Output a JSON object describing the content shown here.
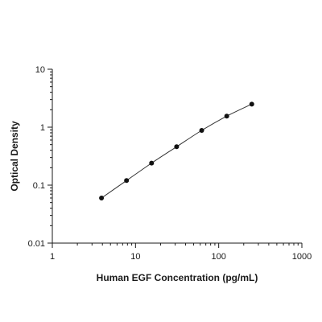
{
  "chart_data": {
    "type": "scatter",
    "title": "",
    "xlabel": "Human EGF Concentration (pg/mL)",
    "ylabel": "Optical Density",
    "x_scale": "log",
    "y_scale": "log",
    "xlim": [
      1,
      1000
    ],
    "ylim": [
      0.01,
      10
    ],
    "x_ticks": [
      "1",
      "10",
      "100",
      "1000"
    ],
    "y_ticks": [
      "0.01",
      "0.1",
      "1",
      "10"
    ],
    "grid": false,
    "legend": "none",
    "fit_curve": true,
    "series": [
      {
        "x": [
          3.9,
          7.8,
          15.6,
          31.2,
          62.5,
          125,
          250
        ],
        "y": [
          0.06,
          0.12,
          0.24,
          0.46,
          0.88,
          1.55,
          2.5
        ]
      }
    ],
    "colors": {
      "point": "#111111",
      "curve": "#333333",
      "axis": "#1a1a1a"
    }
  }
}
